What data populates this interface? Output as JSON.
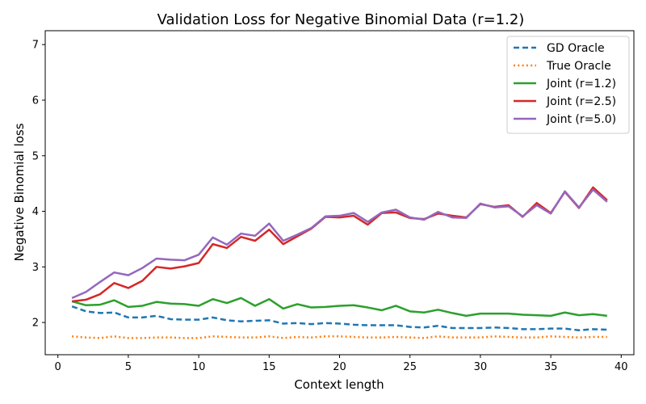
{
  "chart_data": {
    "type": "line",
    "title": "Validation Loss for Negative Binomial Data (r=1.2)",
    "xlabel": "Context length",
    "ylabel": "Negative Binomial loss",
    "xlim": [
      -0.9,
      40.9
    ],
    "ylim": [
      1.42,
      7.25
    ],
    "xticks": [
      0,
      5,
      10,
      15,
      20,
      25,
      30,
      35,
      40
    ],
    "yticks": [
      2,
      3,
      4,
      5,
      6,
      7
    ],
    "legend_position": "top-right",
    "grid": false,
    "x": [
      1,
      2,
      3,
      4,
      5,
      6,
      7,
      8,
      9,
      10,
      11,
      12,
      13,
      14,
      15,
      16,
      17,
      18,
      19,
      20,
      21,
      22,
      23,
      24,
      25,
      26,
      27,
      28,
      29,
      30,
      31,
      32,
      33,
      34,
      35,
      36,
      37,
      38,
      39
    ],
    "series": [
      {
        "name": "GD Oracle",
        "color": "#1f77b4",
        "style": "dashed",
        "values": [
          2.29,
          2.2,
          2.17,
          2.18,
          2.09,
          2.09,
          2.12,
          2.06,
          2.05,
          2.05,
          2.09,
          2.04,
          2.02,
          2.03,
          2.04,
          1.98,
          1.99,
          1.97,
          1.99,
          1.98,
          1.96,
          1.95,
          1.95,
          1.95,
          1.92,
          1.91,
          1.94,
          1.9,
          1.9,
          1.9,
          1.91,
          1.9,
          1.88,
          1.88,
          1.89,
          1.89,
          1.86,
          1.88,
          1.87
        ]
      },
      {
        "name": "True Oracle",
        "color": "#ff7f0e",
        "style": "dotted",
        "values": [
          1.75,
          1.73,
          1.72,
          1.75,
          1.72,
          1.72,
          1.73,
          1.73,
          1.72,
          1.72,
          1.75,
          1.74,
          1.73,
          1.73,
          1.75,
          1.72,
          1.74,
          1.73,
          1.75,
          1.75,
          1.74,
          1.73,
          1.73,
          1.74,
          1.73,
          1.72,
          1.75,
          1.73,
          1.73,
          1.73,
          1.75,
          1.74,
          1.73,
          1.73,
          1.75,
          1.74,
          1.73,
          1.74,
          1.74
        ]
      },
      {
        "name": "Joint (r=1.2)",
        "color": "#2ca02c",
        "style": "solid",
        "values": [
          2.38,
          2.31,
          2.32,
          2.4,
          2.28,
          2.3,
          2.37,
          2.34,
          2.33,
          2.3,
          2.42,
          2.35,
          2.44,
          2.3,
          2.42,
          2.25,
          2.33,
          2.27,
          2.28,
          2.3,
          2.31,
          2.27,
          2.22,
          2.3,
          2.2,
          2.18,
          2.23,
          2.17,
          2.12,
          2.16,
          2.16,
          2.16,
          2.14,
          2.13,
          2.12,
          2.18,
          2.13,
          2.15,
          2.12
        ]
      },
      {
        "name": "Joint (r=2.5)",
        "color": "#d62728",
        "style": "solid",
        "values": [
          2.38,
          2.41,
          2.51,
          2.71,
          2.62,
          2.75,
          3.0,
          2.97,
          3.01,
          3.07,
          3.41,
          3.34,
          3.54,
          3.47,
          3.67,
          3.41,
          3.55,
          3.69,
          3.9,
          3.89,
          3.92,
          3.76,
          3.97,
          3.98,
          3.88,
          3.86,
          3.96,
          3.92,
          3.89,
          4.13,
          4.08,
          4.11,
          3.9,
          4.15,
          3.97,
          4.35,
          4.06,
          4.43,
          4.2
        ]
      },
      {
        "name": "Joint (r=5.0)",
        "color": "#9467bd",
        "style": "solid",
        "values": [
          2.44,
          2.55,
          2.73,
          2.9,
          2.85,
          2.98,
          3.15,
          3.13,
          3.12,
          3.22,
          3.53,
          3.4,
          3.6,
          3.56,
          3.78,
          3.47,
          3.58,
          3.7,
          3.91,
          3.92,
          3.97,
          3.81,
          3.98,
          4.03,
          3.89,
          3.85,
          3.99,
          3.89,
          3.88,
          4.14,
          4.07,
          4.09,
          3.91,
          4.11,
          3.96,
          4.36,
          4.07,
          4.39,
          4.17
        ]
      }
    ]
  }
}
